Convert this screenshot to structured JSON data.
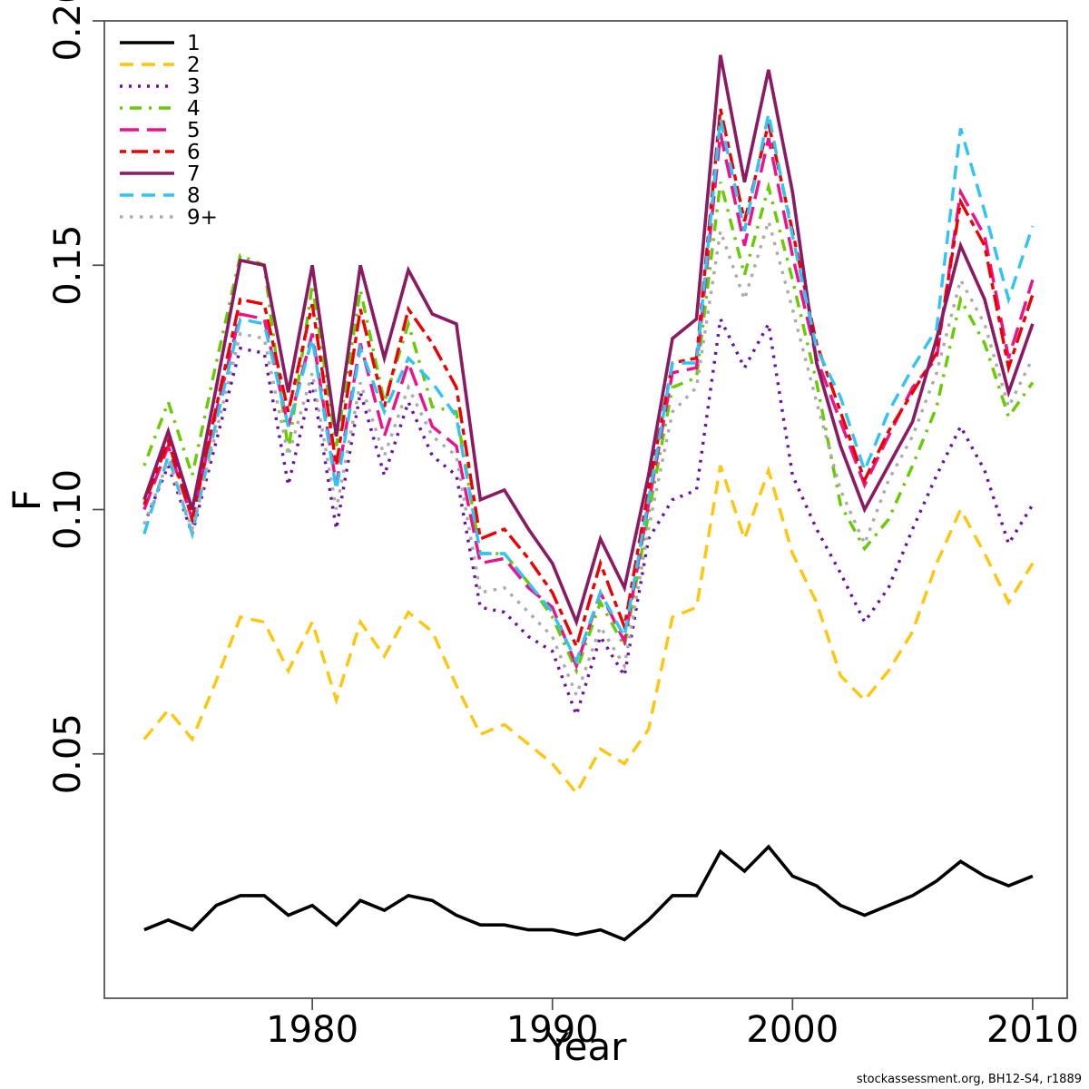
{
  "page": {
    "background": "#ffffff",
    "box_color": "#4a4a4a"
  },
  "footer": {
    "text": "stockassessment.org, BH12-S4, r1889"
  },
  "chart_data": {
    "type": "line",
    "title": "",
    "xlabel": "Year",
    "ylabel": "F",
    "grid": false,
    "legend_position": "top-left",
    "xlim": [
      1971.34,
      2011.44
    ],
    "ylim": [
      0,
      0.2
    ],
    "x_ticks": [
      {
        "value": 1980,
        "label": "1980"
      },
      {
        "value": 1990,
        "label": "1990"
      },
      {
        "value": 2000,
        "label": "2000"
      },
      {
        "value": 2010,
        "label": "2010"
      }
    ],
    "y_ticks": [
      {
        "value": 0.05,
        "label": "0.05"
      },
      {
        "value": 0.1,
        "label": "0.10"
      },
      {
        "value": 0.15,
        "label": "0.15"
      },
      {
        "value": 0.2,
        "label": "0.20"
      }
    ],
    "x": [
      1973,
      1974,
      1975,
      1976,
      1977,
      1978,
      1979,
      1980,
      1981,
      1982,
      1983,
      1984,
      1985,
      1986,
      1987,
      1988,
      1989,
      1990,
      1991,
      1992,
      1993,
      1994,
      1995,
      1996,
      1997,
      1998,
      1999,
      2000,
      2001,
      2002,
      2003,
      2004,
      2005,
      2006,
      2007,
      2008,
      2009,
      2010
    ],
    "series": [
      {
        "name": "1",
        "color": "#000000",
        "dash": "",
        "width": 3.6,
        "values": [
          0.014,
          0.016,
          0.014,
          0.019,
          0.021,
          0.021,
          0.017,
          0.019,
          0.015,
          0.02,
          0.018,
          0.021,
          0.02,
          0.017,
          0.015,
          0.015,
          0.014,
          0.014,
          0.013,
          0.014,
          0.012,
          0.016,
          0.021,
          0.021,
          0.03,
          0.026,
          0.031,
          0.025,
          0.023,
          0.019,
          0.017,
          0.019,
          0.021,
          0.024,
          0.028,
          0.025,
          0.023,
          0.025
        ]
      },
      {
        "name": "2",
        "color": "#FFC60B",
        "dash": "15,9",
        "width": 3.4,
        "values": [
          0.053,
          0.059,
          0.053,
          0.065,
          0.078,
          0.077,
          0.067,
          0.077,
          0.061,
          0.077,
          0.07,
          0.079,
          0.075,
          0.064,
          0.054,
          0.056,
          0.052,
          0.048,
          0.042,
          0.051,
          0.048,
          0.055,
          0.078,
          0.08,
          0.109,
          0.094,
          0.108,
          0.091,
          0.081,
          0.066,
          0.061,
          0.067,
          0.075,
          0.089,
          0.1,
          0.091,
          0.081,
          0.089
        ]
      },
      {
        "name": "3",
        "color": "#6A0DAD",
        "dash": "3,7",
        "width": 3.4,
        "values": [
          0.097,
          0.109,
          0.095,
          0.114,
          0.133,
          0.132,
          0.105,
          0.126,
          0.096,
          0.124,
          0.107,
          0.122,
          0.111,
          0.107,
          0.08,
          0.079,
          0.074,
          0.071,
          0.058,
          0.074,
          0.066,
          0.094,
          0.102,
          0.104,
          0.139,
          0.129,
          0.138,
          0.107,
          0.096,
          0.087,
          0.077,
          0.084,
          0.096,
          0.107,
          0.117,
          0.108,
          0.093,
          0.101
        ]
      },
      {
        "name": "4",
        "color": "#66CC00",
        "dash": "3,8,13,8",
        "width": 3.4,
        "values": [
          0.109,
          0.122,
          0.107,
          0.13,
          0.152,
          0.15,
          0.112,
          0.146,
          0.113,
          0.145,
          0.122,
          0.138,
          0.121,
          0.12,
          0.091,
          0.091,
          0.085,
          0.078,
          0.067,
          0.081,
          0.072,
          0.099,
          0.125,
          0.127,
          0.167,
          0.148,
          0.166,
          0.147,
          0.126,
          0.101,
          0.092,
          0.098,
          0.109,
          0.121,
          0.143,
          0.134,
          0.119,
          0.126
        ]
      },
      {
        "name": "5",
        "color": "#EE1289",
        "dash": "21,9",
        "width": 3.4,
        "values": [
          0.1,
          0.113,
          0.098,
          0.12,
          0.14,
          0.139,
          0.117,
          0.136,
          0.105,
          0.134,
          0.115,
          0.13,
          0.117,
          0.113,
          0.089,
          0.09,
          0.084,
          0.08,
          0.068,
          0.083,
          0.073,
          0.101,
          0.128,
          0.129,
          0.177,
          0.154,
          0.176,
          0.152,
          0.131,
          0.118,
          0.105,
          0.115,
          0.125,
          0.131,
          0.165,
          0.156,
          0.131,
          0.147
        ]
      },
      {
        "name": "6",
        "color": "#EE0000",
        "dash": "7,6,18,6",
        "width": 3.4,
        "values": [
          0.101,
          0.114,
          0.098,
          0.121,
          0.143,
          0.142,
          0.12,
          0.142,
          0.109,
          0.141,
          0.121,
          0.141,
          0.134,
          0.125,
          0.094,
          0.096,
          0.09,
          0.083,
          0.072,
          0.089,
          0.076,
          0.104,
          0.13,
          0.131,
          0.182,
          0.159,
          0.179,
          0.157,
          0.134,
          0.12,
          0.106,
          0.116,
          0.124,
          0.132,
          0.163,
          0.154,
          0.129,
          0.144
        ]
      },
      {
        "name": "7",
        "color": "#8B1A62",
        "dash": "",
        "width": 3.6,
        "values": [
          0.102,
          0.116,
          0.1,
          0.125,
          0.151,
          0.15,
          0.124,
          0.15,
          0.115,
          0.15,
          0.131,
          0.149,
          0.14,
          0.138,
          0.102,
          0.104,
          0.096,
          0.089,
          0.077,
          0.094,
          0.084,
          0.107,
          0.135,
          0.139,
          0.193,
          0.167,
          0.19,
          0.165,
          0.13,
          0.113,
          0.1,
          0.109,
          0.118,
          0.135,
          0.154,
          0.143,
          0.124,
          0.138
        ]
      },
      {
        "name": "8",
        "color": "#2FC4F4",
        "dash": "15,9",
        "width": 3.4,
        "values": [
          0.095,
          0.111,
          0.095,
          0.118,
          0.139,
          0.138,
          0.117,
          0.135,
          0.104,
          0.133,
          0.12,
          0.131,
          0.126,
          0.119,
          0.091,
          0.091,
          0.085,
          0.079,
          0.069,
          0.083,
          0.074,
          0.102,
          0.13,
          0.13,
          0.18,
          0.157,
          0.181,
          0.156,
          0.133,
          0.123,
          0.108,
          0.12,
          0.129,
          0.137,
          0.178,
          0.161,
          0.143,
          0.158
        ]
      },
      {
        "name": "9+",
        "color": "#ABABAB",
        "dash": "3.5,7.5",
        "width": 3.4,
        "values": [
          0.097,
          0.11,
          0.096,
          0.116,
          0.136,
          0.135,
          0.111,
          0.128,
          0.1,
          0.126,
          0.111,
          0.125,
          0.115,
          0.111,
          0.083,
          0.084,
          0.079,
          0.074,
          0.062,
          0.076,
          0.068,
          0.096,
          0.12,
          0.125,
          0.157,
          0.143,
          0.159,
          0.141,
          0.122,
          0.104,
          0.093,
          0.106,
          0.115,
          0.128,
          0.147,
          0.138,
          0.121,
          0.131
        ]
      }
    ]
  }
}
